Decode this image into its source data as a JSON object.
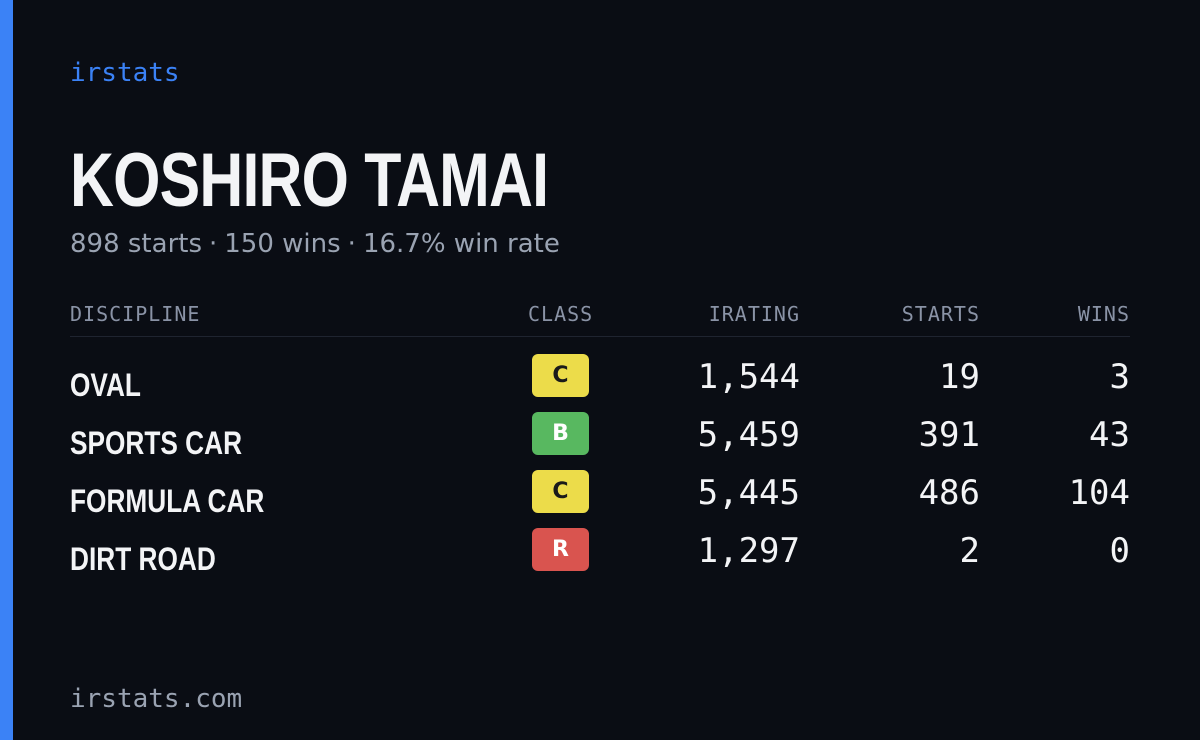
{
  "colors": {
    "background": "#0a0d14",
    "accent": "#3b82f6",
    "text_primary": "#f3f4f6",
    "text_muted": "#9aa3b2",
    "class_colors": {
      "C": {
        "bg": "#ecdc4a",
        "fg": "#1a1a1a"
      },
      "B": {
        "bg": "#58b860",
        "fg": "#ffffff"
      },
      "R": {
        "bg": "#d9544f",
        "fg": "#ffffff"
      }
    }
  },
  "brand": "irstats",
  "player": {
    "name": "KOSHIRO TAMAI",
    "starts_text": "898 starts",
    "wins_text": "150 wins",
    "win_rate_text": "16.7% win rate",
    "separator": "·"
  },
  "table": {
    "headers": {
      "discipline": "DISCIPLINE",
      "class": "CLASS",
      "irating": "IRATING",
      "starts": "STARTS",
      "wins": "WINS"
    },
    "rows": [
      {
        "discipline": "OVAL",
        "class": "C",
        "irating": "1,544",
        "starts": "19",
        "wins": "3"
      },
      {
        "discipline": "SPORTS CAR",
        "class": "B",
        "irating": "5,459",
        "starts": "391",
        "wins": "43"
      },
      {
        "discipline": "FORMULA CAR",
        "class": "C",
        "irating": "5,445",
        "starts": "486",
        "wins": "104"
      },
      {
        "discipline": "DIRT ROAD",
        "class": "R",
        "irating": "1,297",
        "starts": "2",
        "wins": "0"
      }
    ]
  },
  "footer": {
    "domain": "irstats.com"
  }
}
